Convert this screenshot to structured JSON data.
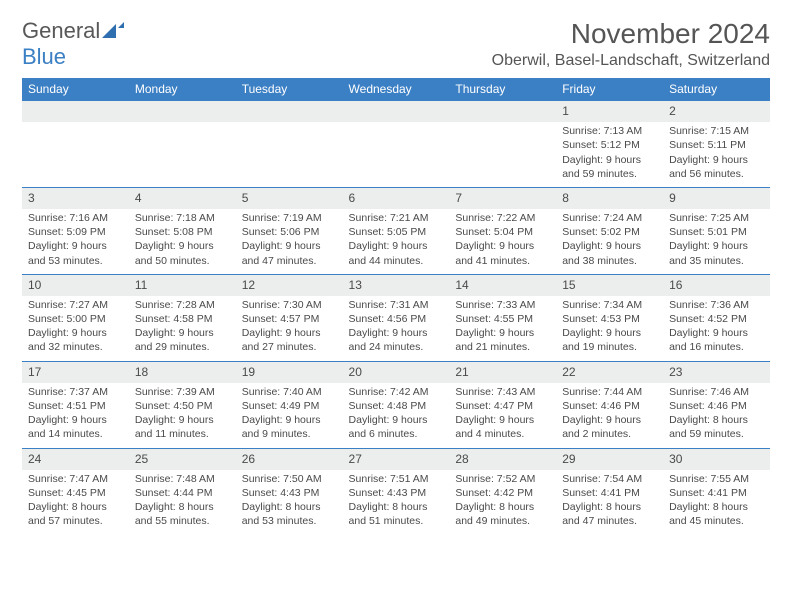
{
  "logo": {
    "word1": "General",
    "word2": "Blue"
  },
  "header": {
    "title": "November 2024",
    "location": "Oberwil, Basel-Landschaft, Switzerland"
  },
  "colors": {
    "accent": "#3b7fc4",
    "band": "#eceded",
    "text": "#4a4a4a",
    "bg": "#ffffff"
  },
  "dayNames": [
    "Sunday",
    "Monday",
    "Tuesday",
    "Wednesday",
    "Thursday",
    "Friday",
    "Saturday"
  ],
  "weeks": [
    [
      null,
      null,
      null,
      null,
      null,
      {
        "n": "1",
        "sr": "Sunrise: 7:13 AM",
        "ss": "Sunset: 5:12 PM",
        "d1": "Daylight: 9 hours",
        "d2": "and 59 minutes."
      },
      {
        "n": "2",
        "sr": "Sunrise: 7:15 AM",
        "ss": "Sunset: 5:11 PM",
        "d1": "Daylight: 9 hours",
        "d2": "and 56 minutes."
      }
    ],
    [
      {
        "n": "3",
        "sr": "Sunrise: 7:16 AM",
        "ss": "Sunset: 5:09 PM",
        "d1": "Daylight: 9 hours",
        "d2": "and 53 minutes."
      },
      {
        "n": "4",
        "sr": "Sunrise: 7:18 AM",
        "ss": "Sunset: 5:08 PM",
        "d1": "Daylight: 9 hours",
        "d2": "and 50 minutes."
      },
      {
        "n": "5",
        "sr": "Sunrise: 7:19 AM",
        "ss": "Sunset: 5:06 PM",
        "d1": "Daylight: 9 hours",
        "d2": "and 47 minutes."
      },
      {
        "n": "6",
        "sr": "Sunrise: 7:21 AM",
        "ss": "Sunset: 5:05 PM",
        "d1": "Daylight: 9 hours",
        "d2": "and 44 minutes."
      },
      {
        "n": "7",
        "sr": "Sunrise: 7:22 AM",
        "ss": "Sunset: 5:04 PM",
        "d1": "Daylight: 9 hours",
        "d2": "and 41 minutes."
      },
      {
        "n": "8",
        "sr": "Sunrise: 7:24 AM",
        "ss": "Sunset: 5:02 PM",
        "d1": "Daylight: 9 hours",
        "d2": "and 38 minutes."
      },
      {
        "n": "9",
        "sr": "Sunrise: 7:25 AM",
        "ss": "Sunset: 5:01 PM",
        "d1": "Daylight: 9 hours",
        "d2": "and 35 minutes."
      }
    ],
    [
      {
        "n": "10",
        "sr": "Sunrise: 7:27 AM",
        "ss": "Sunset: 5:00 PM",
        "d1": "Daylight: 9 hours",
        "d2": "and 32 minutes."
      },
      {
        "n": "11",
        "sr": "Sunrise: 7:28 AM",
        "ss": "Sunset: 4:58 PM",
        "d1": "Daylight: 9 hours",
        "d2": "and 29 minutes."
      },
      {
        "n": "12",
        "sr": "Sunrise: 7:30 AM",
        "ss": "Sunset: 4:57 PM",
        "d1": "Daylight: 9 hours",
        "d2": "and 27 minutes."
      },
      {
        "n": "13",
        "sr": "Sunrise: 7:31 AM",
        "ss": "Sunset: 4:56 PM",
        "d1": "Daylight: 9 hours",
        "d2": "and 24 minutes."
      },
      {
        "n": "14",
        "sr": "Sunrise: 7:33 AM",
        "ss": "Sunset: 4:55 PM",
        "d1": "Daylight: 9 hours",
        "d2": "and 21 minutes."
      },
      {
        "n": "15",
        "sr": "Sunrise: 7:34 AM",
        "ss": "Sunset: 4:53 PM",
        "d1": "Daylight: 9 hours",
        "d2": "and 19 minutes."
      },
      {
        "n": "16",
        "sr": "Sunrise: 7:36 AM",
        "ss": "Sunset: 4:52 PM",
        "d1": "Daylight: 9 hours",
        "d2": "and 16 minutes."
      }
    ],
    [
      {
        "n": "17",
        "sr": "Sunrise: 7:37 AM",
        "ss": "Sunset: 4:51 PM",
        "d1": "Daylight: 9 hours",
        "d2": "and 14 minutes."
      },
      {
        "n": "18",
        "sr": "Sunrise: 7:39 AM",
        "ss": "Sunset: 4:50 PM",
        "d1": "Daylight: 9 hours",
        "d2": "and 11 minutes."
      },
      {
        "n": "19",
        "sr": "Sunrise: 7:40 AM",
        "ss": "Sunset: 4:49 PM",
        "d1": "Daylight: 9 hours",
        "d2": "and 9 minutes."
      },
      {
        "n": "20",
        "sr": "Sunrise: 7:42 AM",
        "ss": "Sunset: 4:48 PM",
        "d1": "Daylight: 9 hours",
        "d2": "and 6 minutes."
      },
      {
        "n": "21",
        "sr": "Sunrise: 7:43 AM",
        "ss": "Sunset: 4:47 PM",
        "d1": "Daylight: 9 hours",
        "d2": "and 4 minutes."
      },
      {
        "n": "22",
        "sr": "Sunrise: 7:44 AM",
        "ss": "Sunset: 4:46 PM",
        "d1": "Daylight: 9 hours",
        "d2": "and 2 minutes."
      },
      {
        "n": "23",
        "sr": "Sunrise: 7:46 AM",
        "ss": "Sunset: 4:46 PM",
        "d1": "Daylight: 8 hours",
        "d2": "and 59 minutes."
      }
    ],
    [
      {
        "n": "24",
        "sr": "Sunrise: 7:47 AM",
        "ss": "Sunset: 4:45 PM",
        "d1": "Daylight: 8 hours",
        "d2": "and 57 minutes."
      },
      {
        "n": "25",
        "sr": "Sunrise: 7:48 AM",
        "ss": "Sunset: 4:44 PM",
        "d1": "Daylight: 8 hours",
        "d2": "and 55 minutes."
      },
      {
        "n": "26",
        "sr": "Sunrise: 7:50 AM",
        "ss": "Sunset: 4:43 PM",
        "d1": "Daylight: 8 hours",
        "d2": "and 53 minutes."
      },
      {
        "n": "27",
        "sr": "Sunrise: 7:51 AM",
        "ss": "Sunset: 4:43 PM",
        "d1": "Daylight: 8 hours",
        "d2": "and 51 minutes."
      },
      {
        "n": "28",
        "sr": "Sunrise: 7:52 AM",
        "ss": "Sunset: 4:42 PM",
        "d1": "Daylight: 8 hours",
        "d2": "and 49 minutes."
      },
      {
        "n": "29",
        "sr": "Sunrise: 7:54 AM",
        "ss": "Sunset: 4:41 PM",
        "d1": "Daylight: 8 hours",
        "d2": "and 47 minutes."
      },
      {
        "n": "30",
        "sr": "Sunrise: 7:55 AM",
        "ss": "Sunset: 4:41 PM",
        "d1": "Daylight: 8 hours",
        "d2": "and 45 minutes."
      }
    ]
  ]
}
